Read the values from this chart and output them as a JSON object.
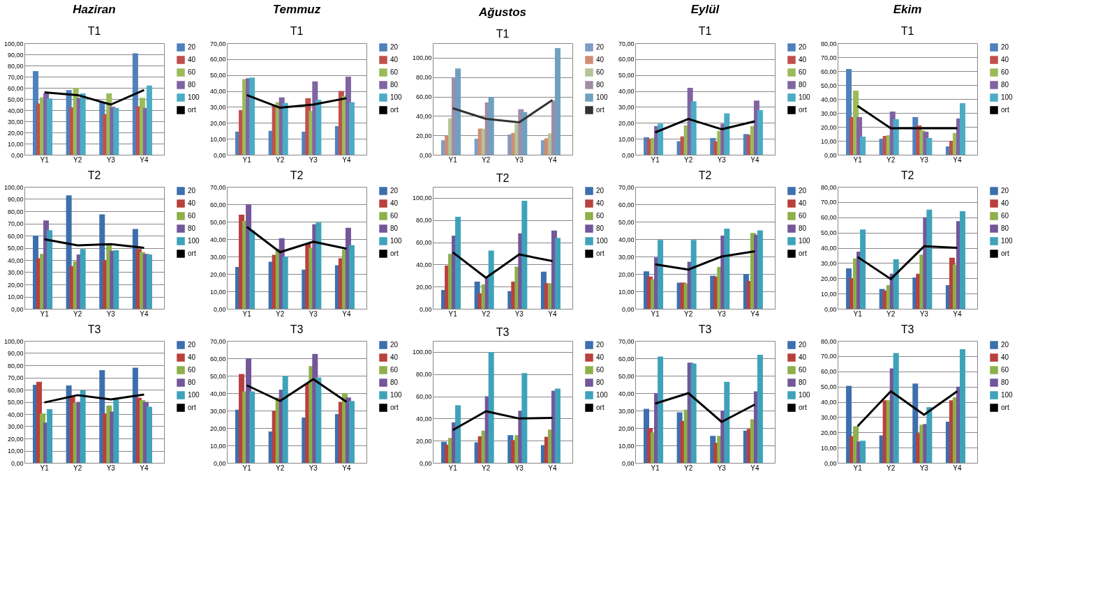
{
  "chart_data": [
    {
      "type": "bar",
      "title": "Haziran",
      "subtitle": "T1",
      "categories": [
        "Y1",
        "Y2",
        "Y3",
        "Y4"
      ],
      "ylim": [
        0,
        100
      ],
      "yticks": [
        {
          "value": 0,
          "label": "0,00"
        },
        {
          "value": 10,
          "label": "10,00"
        },
        {
          "value": 20,
          "label": "20,00"
        },
        {
          "value": 30,
          "label": "30,00"
        },
        {
          "value": 40,
          "label": "40,00"
        },
        {
          "value": 50,
          "label": "50,00"
        },
        {
          "value": 60,
          "label": "60,00"
        },
        {
          "value": 70,
          "label": "70,00"
        },
        {
          "value": 80,
          "label": "80,00"
        },
        {
          "value": 90,
          "label": "90,00"
        },
        {
          "value": 100,
          "label": "100,00"
        }
      ],
      "grid": "y",
      "legend": "right",
      "series": [
        {
          "name": "20",
          "color": "#4f81bd",
          "values": [
            75,
            58,
            47,
            91
          ]
        },
        {
          "name": "40",
          "color": "#c0504d",
          "values": [
            46,
            42.5,
            36.5,
            43.5
          ]
        },
        {
          "name": "60",
          "color": "#9bbb59",
          "values": [
            51.5,
            60,
            55,
            51
          ]
        },
        {
          "name": "80",
          "color": "#8064a2",
          "values": [
            55,
            51,
            43,
            42
          ]
        },
        {
          "name": "100",
          "color": "#4bacc6",
          "values": [
            50.5,
            55,
            42,
            62
          ]
        },
        {
          "name": "ort",
          "color": "#000000",
          "type": "line",
          "values": [
            56,
            53.5,
            45,
            58
          ]
        }
      ]
    },
    {
      "type": "bar",
      "title": "Temmuz",
      "subtitle": "T1",
      "categories": [
        "Y1",
        "Y2",
        "Y3",
        "Y4"
      ],
      "ylim": [
        0,
        70
      ],
      "yticks": [
        {
          "value": 0,
          "label": "0,00"
        },
        {
          "value": 10,
          "label": "10,00"
        },
        {
          "value": 20,
          "label": "20,00"
        },
        {
          "value": 30,
          "label": "30,00"
        },
        {
          "value": 40,
          "label": "40,00"
        },
        {
          "value": 50,
          "label": "50,00"
        },
        {
          "value": 60,
          "label": "60,00"
        },
        {
          "value": 70,
          "label": "70,00"
        }
      ],
      "grid": "y",
      "legend": "right",
      "series": [
        {
          "name": "20",
          "color": "#4f81bd",
          "values": [
            14.5,
            15,
            14.5,
            18
          ]
        },
        {
          "name": "40",
          "color": "#c0504d",
          "values": [
            28,
            31,
            35.5,
            40
          ]
        },
        {
          "name": "60",
          "color": "#9bbb59",
          "values": [
            47.5,
            33,
            27.5,
            37
          ]
        },
        {
          "name": "80",
          "color": "#8064a2",
          "values": [
            48,
            36,
            46,
            49
          ]
        },
        {
          "name": "100",
          "color": "#4bacc6",
          "values": [
            48.5,
            32.5,
            34.5,
            33
          ]
        },
        {
          "name": "ort",
          "color": "#000000",
          "type": "line",
          "values": [
            37.5,
            29.5,
            31.5,
            35.5
          ]
        }
      ]
    },
    {
      "type": "bar",
      "title": "Ağustos",
      "subtitle": "T1",
      "categories": [
        "Y1",
        "Y2",
        "Y3",
        "Y4"
      ],
      "ylim": [
        0,
        115
      ],
      "yticks": [
        {
          "value": 0,
          "label": "0,00"
        },
        {
          "value": 20,
          "label": "20,00"
        },
        {
          "value": 40,
          "label": "40,00"
        },
        {
          "value": 60,
          "label": "60,00"
        },
        {
          "value": 80,
          "label": "80,00"
        },
        {
          "value": 100,
          "label": "100,00"
        }
      ],
      "grid": "y",
      "legend": "right",
      "series": [
        {
          "name": "20",
          "color": "#7f9cc4",
          "values": [
            15,
            16.5,
            21,
            15
          ]
        },
        {
          "name": "40",
          "color": "#d08c74",
          "values": [
            19.5,
            27,
            22.5,
            17
          ]
        },
        {
          "name": "60",
          "color": "#b4c494",
          "values": [
            37.5,
            26.5,
            32,
            22
          ]
        },
        {
          "name": "80",
          "color": "#a08ca8",
          "values": [
            80,
            54,
            47,
            56
          ]
        },
        {
          "name": "100",
          "color": "#6fa0c0",
          "values": [
            89,
            59.5,
            44,
            110
          ]
        },
        {
          "name": "ort",
          "color": "#333333",
          "type": "line",
          "values": [
            48,
            37,
            33.5,
            56.5
          ]
        }
      ]
    },
    {
      "type": "bar",
      "title": "Eylül",
      "subtitle": "T1",
      "categories": [
        "Y1",
        "Y2",
        "Y3",
        "Y4"
      ],
      "ylim": [
        0,
        70
      ],
      "yticks": [
        {
          "value": 0,
          "label": "0,00"
        },
        {
          "value": 10,
          "label": "10,00"
        },
        {
          "value": 20,
          "label": "20,00"
        },
        {
          "value": 30,
          "label": "30,00"
        },
        {
          "value": 40,
          "label": "40,00"
        },
        {
          "value": 50,
          "label": "50,00"
        },
        {
          "value": 60,
          "label": "60,00"
        },
        {
          "value": 70,
          "label": "70,00"
        }
      ],
      "grid": "y",
      "legend": "right",
      "series": [
        {
          "name": "20",
          "color": "#4f81bd",
          "values": [
            11,
            8.5,
            10.5,
            13
          ]
        },
        {
          "name": "40",
          "color": "#c0504d",
          "values": [
            10,
            11.5,
            8.5,
            12.5
          ]
        },
        {
          "name": "60",
          "color": "#9bbb59",
          "values": [
            10.5,
            18.5,
            15,
            18
          ]
        },
        {
          "name": "80",
          "color": "#8064a2",
          "values": [
            18,
            42,
            19.5,
            34
          ]
        },
        {
          "name": "100",
          "color": "#4bacc6",
          "values": [
            19.5,
            33.5,
            26,
            28
          ]
        },
        {
          "name": "ort",
          "color": "#000000",
          "type": "line",
          "values": [
            14,
            22.5,
            16,
            21
          ]
        }
      ]
    },
    {
      "type": "bar",
      "title": "Ekim",
      "subtitle": "T1",
      "categories": [
        "Y1",
        "Y2",
        "Y3",
        "Y4"
      ],
      "ylim": [
        0,
        80
      ],
      "yticks": [
        {
          "value": 0,
          "label": "0,00"
        },
        {
          "value": 10,
          "label": "10,00"
        },
        {
          "value": 20,
          "label": "20,00"
        },
        {
          "value": 30,
          "label": "30,00"
        },
        {
          "value": 40,
          "label": "40,00"
        },
        {
          "value": 50,
          "label": "50,00"
        },
        {
          "value": 60,
          "label": "60,00"
        },
        {
          "value": 70,
          "label": "70,00"
        },
        {
          "value": 80,
          "label": "80,00"
        }
      ],
      "grid": "y",
      "legend": "right",
      "series": [
        {
          "name": "20",
          "color": "#4f81bd",
          "values": [
            61.5,
            11.5,
            27,
            6
          ]
        },
        {
          "name": "40",
          "color": "#c0504d",
          "values": [
            27,
            13.5,
            21,
            10
          ]
        },
        {
          "name": "60",
          "color": "#9bbb59",
          "values": [
            46,
            14,
            17.5,
            15.5
          ]
        },
        {
          "name": "80",
          "color": "#8064a2",
          "values": [
            27,
            31,
            16.5,
            26
          ]
        },
        {
          "name": "100",
          "color": "#4bacc6",
          "values": [
            13,
            25.5,
            12,
            37
          ]
        },
        {
          "name": "ort",
          "color": "#000000",
          "type": "line",
          "values": [
            35,
            19,
            19,
            19
          ]
        }
      ]
    },
    {
      "type": "bar",
      "title": "T2",
      "categories": [
        "Y1",
        "Y2",
        "Y3",
        "Y4"
      ],
      "ylim": [
        0,
        100
      ],
      "yticks": [
        {
          "value": 0,
          "label": "0,00"
        },
        {
          "value": 10,
          "label": "10,00"
        },
        {
          "value": 20,
          "label": "20,00"
        },
        {
          "value": 30,
          "label": "30,00"
        },
        {
          "value": 40,
          "label": "40,00"
        },
        {
          "value": 50,
          "label": "50,00"
        },
        {
          "value": 60,
          "label": "60,00"
        },
        {
          "value": 70,
          "label": "70,00"
        },
        {
          "value": 80,
          "label": "80,00"
        },
        {
          "value": 90,
          "label": "90,00"
        },
        {
          "value": 100,
          "label": "100,00"
        }
      ],
      "grid": "y",
      "legend": "right",
      "series": [
        {
          "name": "20",
          "color": "#3d6fad",
          "values": [
            60,
            93,
            77.5,
            65.5
          ]
        },
        {
          "name": "40",
          "color": "#b9403d",
          "values": [
            41.5,
            35,
            40,
            49
          ]
        },
        {
          "name": "60",
          "color": "#8db04a",
          "values": [
            45,
            39,
            52,
            46.5
          ]
        },
        {
          "name": "80",
          "color": "#73579a",
          "values": [
            72.5,
            44.5,
            47.5,
            45
          ]
        },
        {
          "name": "100",
          "color": "#3ea3ba",
          "values": [
            64.5,
            49,
            48,
            44.5
          ]
        },
        {
          "name": "ort",
          "color": "#000000",
          "type": "line",
          "values": [
            57,
            52,
            53,
            50
          ]
        }
      ]
    },
    {
      "type": "bar",
      "title": "T2",
      "categories": [
        "Y1",
        "Y2",
        "Y3",
        "Y4"
      ],
      "ylim": [
        0,
        70
      ],
      "yticks": [
        {
          "value": 0,
          "label": "0,00"
        },
        {
          "value": 10,
          "label": "10,00"
        },
        {
          "value": 20,
          "label": "20,00"
        },
        {
          "value": 30,
          "label": "30,00"
        },
        {
          "value": 40,
          "label": "40,00"
        },
        {
          "value": 50,
          "label": "50,00"
        },
        {
          "value": 60,
          "label": "60,00"
        },
        {
          "value": 70,
          "label": "70,00"
        }
      ],
      "grid": "y",
      "legend": "right",
      "series": [
        {
          "name": "20",
          "color": "#3d6fad",
          "values": [
            24,
            27,
            22.5,
            25
          ]
        },
        {
          "name": "40",
          "color": "#b9403d",
          "values": [
            54,
            31,
            37.5,
            29
          ]
        },
        {
          "name": "60",
          "color": "#8db04a",
          "values": [
            50.5,
            34.5,
            35,
            34
          ]
        },
        {
          "name": "80",
          "color": "#73579a",
          "values": [
            60,
            40.5,
            48.5,
            46.5
          ]
        },
        {
          "name": "100",
          "color": "#3ea3ba",
          "values": [
            45,
            30,
            49.5,
            36.5
          ]
        },
        {
          "name": "ort",
          "color": "#000000",
          "type": "line",
          "values": [
            47,
            32.5,
            38.5,
            34.5
          ]
        }
      ]
    },
    {
      "type": "bar",
      "title": "T2",
      "categories": [
        "Y1",
        "Y2",
        "Y3",
        "Y4"
      ],
      "ylim": [
        0,
        110
      ],
      "yticks": [
        {
          "value": 0,
          "label": "0,00"
        },
        {
          "value": 20,
          "label": "20,00"
        },
        {
          "value": 40,
          "label": "40,00"
        },
        {
          "value": 60,
          "label": "60,00"
        },
        {
          "value": 80,
          "label": "80,00"
        },
        {
          "value": 100,
          "label": "100,00"
        }
      ],
      "grid": "y",
      "legend": "right",
      "series": [
        {
          "name": "20",
          "color": "#3d6fad",
          "values": [
            17,
            24.5,
            16,
            33.5
          ]
        },
        {
          "name": "40",
          "color": "#b9403d",
          "values": [
            39,
            14,
            24.5,
            23
          ]
        },
        {
          "name": "60",
          "color": "#8db04a",
          "values": [
            49.5,
            22,
            38,
            23
          ]
        },
        {
          "name": "80",
          "color": "#73579a",
          "values": [
            66,
            28,
            68,
            70.5
          ]
        },
        {
          "name": "100",
          "color": "#3ea3ba",
          "values": [
            83,
            52.5,
            97.5,
            64
          ]
        },
        {
          "name": "ort",
          "color": "#000000",
          "type": "line",
          "values": [
            51,
            28,
            49,
            43
          ]
        }
      ]
    },
    {
      "type": "bar",
      "title": "T2",
      "categories": [
        "Y1",
        "Y2",
        "Y3",
        "Y4"
      ],
      "ylim": [
        0,
        70
      ],
      "yticks": [
        {
          "value": 0,
          "label": "0,00"
        },
        {
          "value": 10,
          "label": "10,00"
        },
        {
          "value": 20,
          "label": "20,00"
        },
        {
          "value": 30,
          "label": "30,00"
        },
        {
          "value": 40,
          "label": "40,00"
        },
        {
          "value": 50,
          "label": "50,00"
        },
        {
          "value": 60,
          "label": "60,00"
        },
        {
          "value": 70,
          "label": "70,00"
        }
      ],
      "grid": "y",
      "legend": "right",
      "series": [
        {
          "name": "20",
          "color": "#3d6fad",
          "values": [
            21.5,
            15,
            19,
            20
          ]
        },
        {
          "name": "40",
          "color": "#b9403d",
          "values": [
            18.5,
            15,
            18.5,
            16
          ]
        },
        {
          "name": "60",
          "color": "#8db04a",
          "values": [
            17,
            14.5,
            24,
            43.5
          ]
        },
        {
          "name": "80",
          "color": "#73579a",
          "values": [
            29.5,
            27,
            42,
            42.5
          ]
        },
        {
          "name": "100",
          "color": "#3ea3ba",
          "values": [
            39.5,
            39.5,
            46,
            45
          ]
        },
        {
          "name": "ort",
          "color": "#000000",
          "type": "line",
          "values": [
            25.5,
            22.5,
            30,
            33
          ]
        }
      ]
    },
    {
      "type": "bar",
      "title": "T2",
      "categories": [
        "Y1",
        "Y2",
        "Y3",
        "Y4"
      ],
      "ylim": [
        0,
        80
      ],
      "yticks": [
        {
          "value": 0,
          "label": "0,00"
        },
        {
          "value": 10,
          "label": "10,00"
        },
        {
          "value": 20,
          "label": "20,00"
        },
        {
          "value": 30,
          "label": "30,00"
        },
        {
          "value": 40,
          "label": "40,00"
        },
        {
          "value": 50,
          "label": "50,00"
        },
        {
          "value": 60,
          "label": "60,00"
        },
        {
          "value": 70,
          "label": "70,00"
        },
        {
          "value": 80,
          "label": "80,00"
        }
      ],
      "grid": "y",
      "legend": "right",
      "series": [
        {
          "name": "20",
          "color": "#3d6fad",
          "values": [
            26.5,
            13,
            20.5,
            15.5
          ]
        },
        {
          "name": "40",
          "color": "#b9403d",
          "values": [
            20,
            12,
            23,
            33.5
          ]
        },
        {
          "name": "60",
          "color": "#8db04a",
          "values": [
            33,
            15.5,
            35.5,
            29
          ]
        },
        {
          "name": "80",
          "color": "#73579a",
          "values": [
            37.5,
            23,
            60,
            57.5
          ]
        },
        {
          "name": "100",
          "color": "#3ea3ba",
          "values": [
            52,
            32.5,
            65,
            64
          ]
        },
        {
          "name": "ort",
          "color": "#000000",
          "type": "line",
          "values": [
            34,
            19.5,
            41,
            40
          ]
        }
      ]
    },
    {
      "type": "bar",
      "title": "T3",
      "categories": [
        "Y1",
        "Y2",
        "Y3",
        "Y4"
      ],
      "ylim": [
        0,
        100
      ],
      "yticks": [
        {
          "value": 0,
          "label": "0,00"
        },
        {
          "value": 10,
          "label": "10,00"
        },
        {
          "value": 20,
          "label": "20,00"
        },
        {
          "value": 30,
          "label": "30,00"
        },
        {
          "value": 40,
          "label": "40,00"
        },
        {
          "value": 50,
          "label": "50,00"
        },
        {
          "value": 60,
          "label": "60,00"
        },
        {
          "value": 70,
          "label": "70,00"
        },
        {
          "value": 80,
          "label": "80,00"
        },
        {
          "value": 90,
          "label": "90,00"
        },
        {
          "value": 100,
          "label": "100,00"
        }
      ],
      "grid": "y",
      "legend": "right",
      "series": [
        {
          "name": "20",
          "color": "#3d6fad",
          "values": [
            64,
            63.5,
            76,
            78
          ]
        },
        {
          "name": "40",
          "color": "#b9403d",
          "values": [
            66.5,
            54,
            40.5,
            53.5
          ]
        },
        {
          "name": "60",
          "color": "#8db04a",
          "values": [
            40.5,
            49.5,
            47,
            51.5
          ]
        },
        {
          "name": "80",
          "color": "#73579a",
          "values": [
            33,
            50,
            42,
            50
          ]
        },
        {
          "name": "100",
          "color": "#3ea3ba",
          "values": [
            44,
            59.5,
            52,
            46
          ]
        },
        {
          "name": "ort",
          "color": "#000000",
          "type": "line",
          "values": [
            49.5,
            55.5,
            52,
            56
          ]
        }
      ]
    },
    {
      "type": "bar",
      "title": "T3",
      "categories": [
        "Y1",
        "Y2",
        "Y3",
        "Y4"
      ],
      "ylim": [
        0,
        70
      ],
      "yticks": [
        {
          "value": 0,
          "label": "0,00"
        },
        {
          "value": 10,
          "label": "10,00"
        },
        {
          "value": 20,
          "label": "20,00"
        },
        {
          "value": 30,
          "label": "30,00"
        },
        {
          "value": 40,
          "label": "40,00"
        },
        {
          "value": 50,
          "label": "50,00"
        },
        {
          "value": 60,
          "label": "60,00"
        },
        {
          "value": 70,
          "label": "70,00"
        }
      ],
      "grid": "y",
      "legend": "right",
      "series": [
        {
          "name": "20",
          "color": "#3d6fad",
          "values": [
            30.5,
            18,
            26,
            28
          ]
        },
        {
          "name": "40",
          "color": "#b9403d",
          "values": [
            51,
            30,
            45.5,
            35
          ]
        },
        {
          "name": "60",
          "color": "#8db04a",
          "values": [
            41,
            37.5,
            55.5,
            40
          ]
        },
        {
          "name": "80",
          "color": "#73579a",
          "values": [
            60,
            42,
            62.5,
            37.5
          ]
        },
        {
          "name": "100",
          "color": "#3ea3ba",
          "values": [
            41,
            50,
            49,
            35.5
          ]
        },
        {
          "name": "ort",
          "color": "#000000",
          "type": "line",
          "values": [
            44.5,
            35.5,
            48,
            35
          ]
        }
      ]
    },
    {
      "type": "bar",
      "title": "T3",
      "categories": [
        "Y1",
        "Y2",
        "Y3",
        "Y4"
      ],
      "ylim": [
        0,
        110
      ],
      "yticks": [
        {
          "value": 0,
          "label": "0,00"
        },
        {
          "value": 20,
          "label": "20,00"
        },
        {
          "value": 40,
          "label": "40,00"
        },
        {
          "value": 60,
          "label": "60,00"
        },
        {
          "value": 80,
          "label": "80,00"
        },
        {
          "value": 100,
          "label": "100,00"
        }
      ],
      "grid": "y",
      "legend": "right",
      "series": [
        {
          "name": "20",
          "color": "#3d6fad",
          "values": [
            19,
            18.5,
            25,
            16
          ]
        },
        {
          "name": "40",
          "color": "#b9403d",
          "values": [
            16.5,
            24,
            20.5,
            23.5
          ]
        },
        {
          "name": "60",
          "color": "#8db04a",
          "values": [
            22.5,
            29,
            25,
            30
          ]
        },
        {
          "name": "80",
          "color": "#73579a",
          "values": [
            36.5,
            60,
            47,
            65
          ]
        },
        {
          "name": "100",
          "color": "#3ea3ba",
          "values": [
            52,
            100,
            81,
            67
          ]
        },
        {
          "name": "ort",
          "color": "#000000",
          "type": "line",
          "values": [
            29.5,
            46.5,
            40,
            40.5
          ]
        }
      ]
    },
    {
      "type": "bar",
      "title": "T3",
      "categories": [
        "Y1",
        "Y2",
        "Y3",
        "Y4"
      ],
      "ylim": [
        0,
        70
      ],
      "yticks": [
        {
          "value": 0,
          "label": "0,00"
        },
        {
          "value": 10,
          "label": "10,00"
        },
        {
          "value": 20,
          "label": "20,00"
        },
        {
          "value": 30,
          "label": "30,00"
        },
        {
          "value": 40,
          "label": "40,00"
        },
        {
          "value": 50,
          "label": "50,00"
        },
        {
          "value": 60,
          "label": "60,00"
        },
        {
          "value": 70,
          "label": "70,00"
        }
      ],
      "grid": "y",
      "legend": "right",
      "series": [
        {
          "name": "20",
          "color": "#3d6fad",
          "values": [
            31,
            29,
            15.5,
            18.5
          ]
        },
        {
          "name": "40",
          "color": "#b9403d",
          "values": [
            20,
            24,
            11.5,
            19.5
          ]
        },
        {
          "name": "60",
          "color": "#8db04a",
          "values": [
            17.5,
            30.5,
            15.5,
            25
          ]
        },
        {
          "name": "80",
          "color": "#73579a",
          "values": [
            40,
            57.5,
            30,
            41
          ]
        },
        {
          "name": "100",
          "color": "#3ea3ba",
          "values": [
            61,
            57,
            46.5,
            62
          ]
        },
        {
          "name": "ort",
          "color": "#000000",
          "type": "line",
          "values": [
            34,
            40,
            23.5,
            33.5
          ]
        }
      ]
    },
    {
      "type": "bar",
      "title": "T3",
      "categories": [
        "Y1",
        "Y2",
        "Y3",
        "Y4"
      ],
      "ylim": [
        0,
        80
      ],
      "yticks": [
        {
          "value": 0,
          "label": "0,00"
        },
        {
          "value": 10,
          "label": "10,00"
        },
        {
          "value": 20,
          "label": "20,00"
        },
        {
          "value": 30,
          "label": "30,00"
        },
        {
          "value": 40,
          "label": "40,00"
        },
        {
          "value": 50,
          "label": "50,00"
        },
        {
          "value": 60,
          "label": "60,00"
        },
        {
          "value": 70,
          "label": "70,00"
        },
        {
          "value": 80,
          "label": "80,00"
        }
      ],
      "grid": "y",
      "legend": "right",
      "series": [
        {
          "name": "20",
          "color": "#3d6fad",
          "values": [
            50.5,
            18,
            52,
            27
          ]
        },
        {
          "name": "40",
          "color": "#b9403d",
          "values": [
            17.5,
            41,
            19.5,
            41
          ]
        },
        {
          "name": "60",
          "color": "#8db04a",
          "values": [
            24,
            41,
            25,
            43
          ]
        },
        {
          "name": "80",
          "color": "#73579a",
          "values": [
            14,
            62,
            25.5,
            50
          ]
        },
        {
          "name": "100",
          "color": "#3ea3ba",
          "values": [
            14.5,
            72,
            36.5,
            74.5
          ]
        },
        {
          "name": "ort",
          "color": "#000000",
          "type": "line",
          "values": [
            24,
            47,
            31.5,
            47
          ]
        }
      ]
    }
  ]
}
